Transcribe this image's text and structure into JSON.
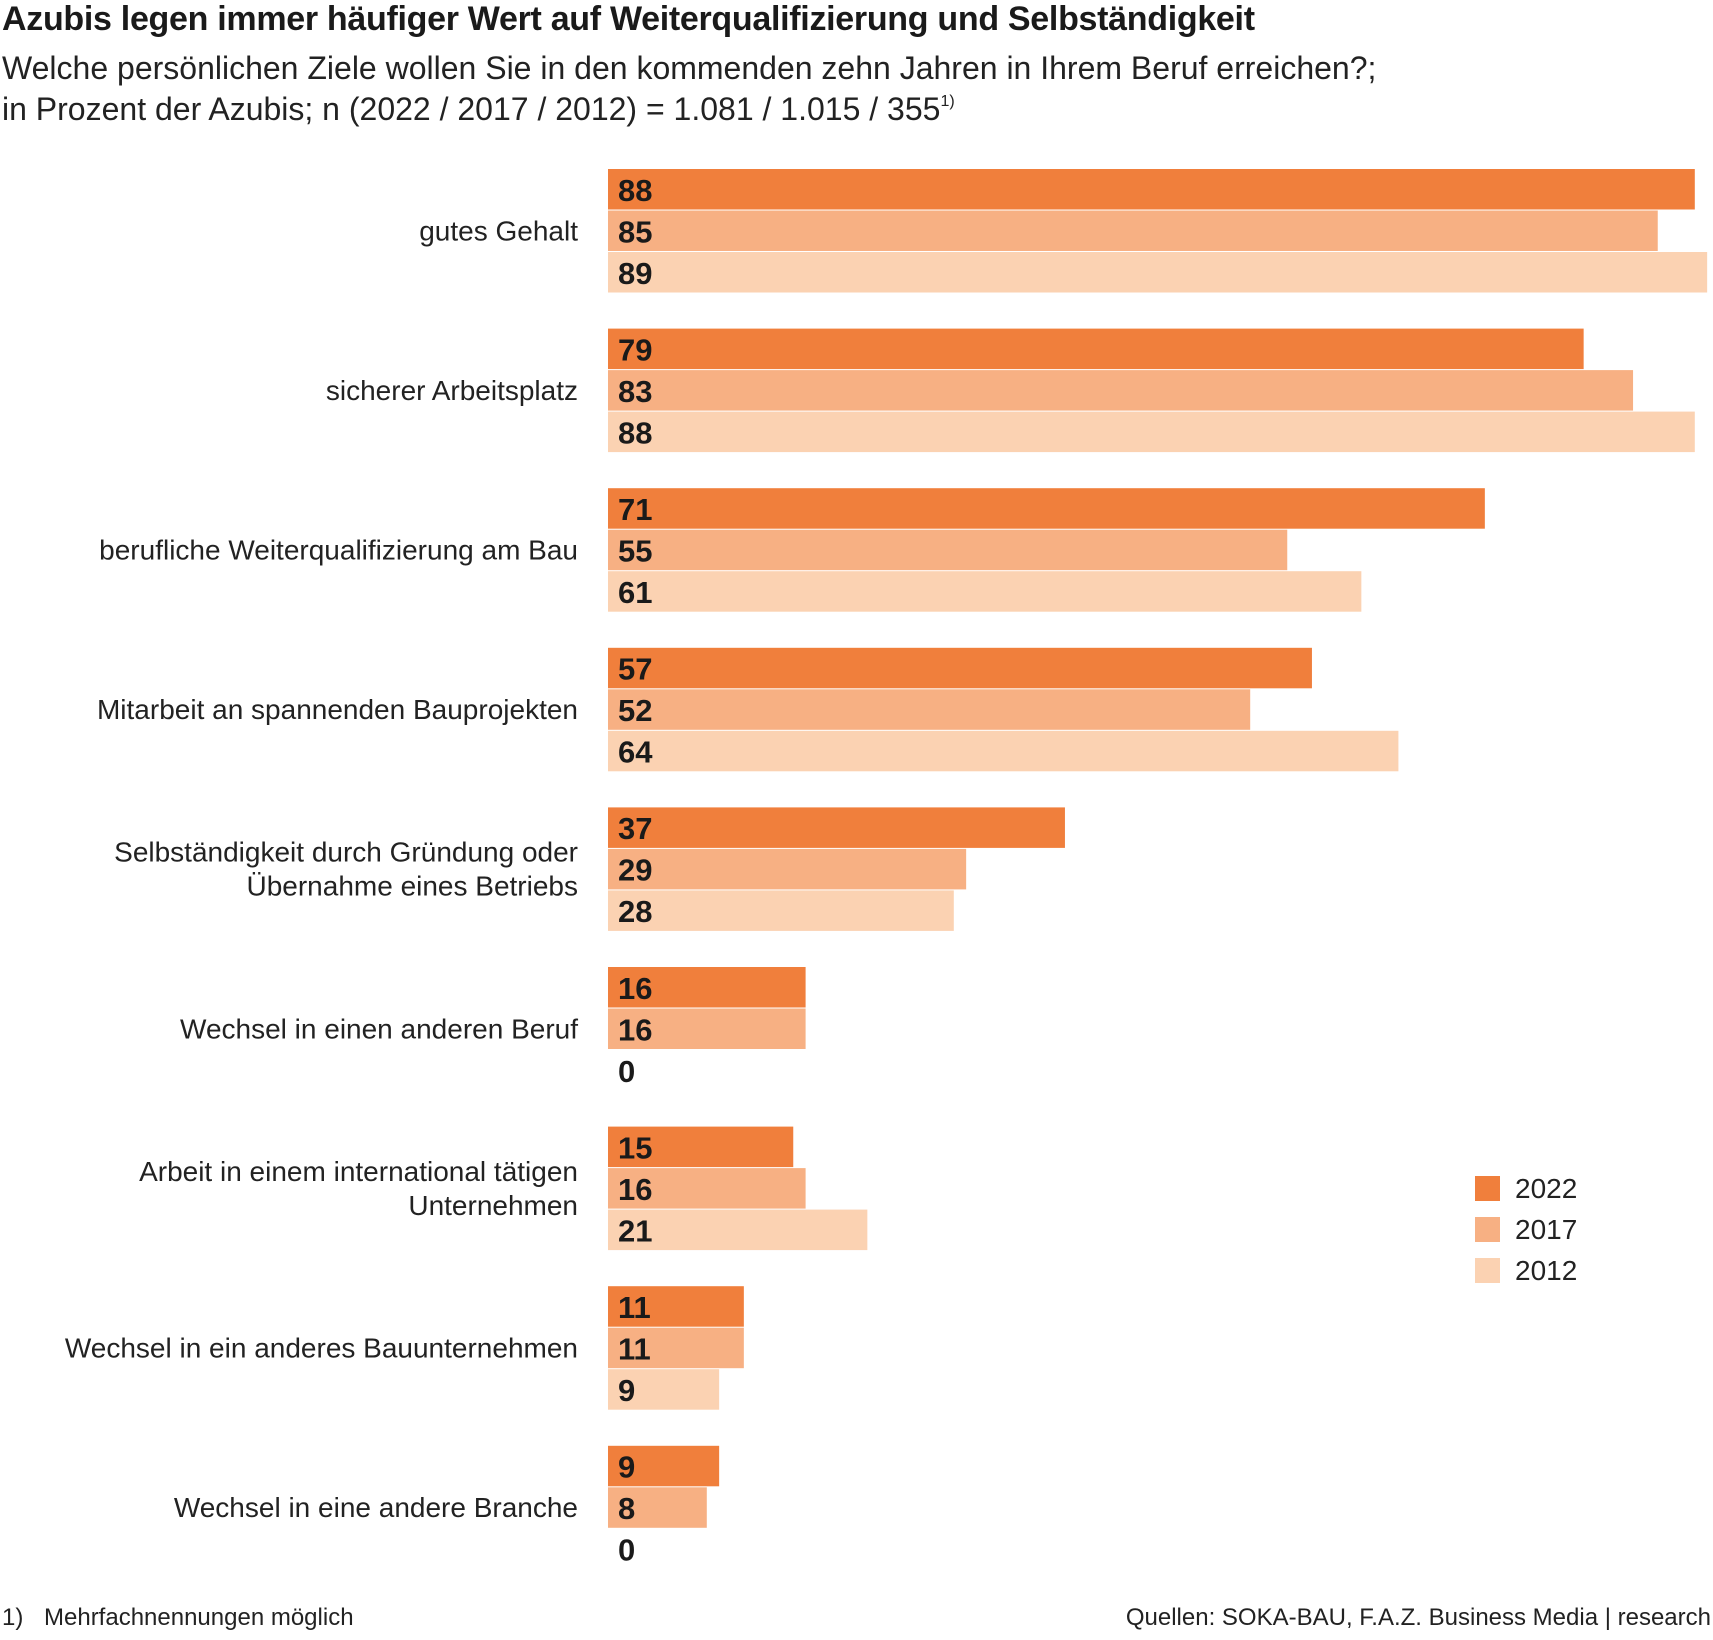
{
  "header": {
    "title": "Azubis legen immer häufiger Wert auf Weiterqualifizierung und Selbständigkeit",
    "subtitle_line1": "Welche persönlichen Ziele wollen Sie in den kommenden zehn Jahren in Ihrem Beruf erreichen?;",
    "subtitle_line2": "in Prozent der Azubis; n (2022 / 2017 / 2012) = 1.081 / 1.015 / 355",
    "subtitle_footnote_ref": "1)"
  },
  "footer": {
    "footnote_marker": "1)",
    "footnote_text": "Mehrfachnennungen möglich",
    "source": "Quellen: SOKA-BAU, F.A.Z. Business Media | research"
  },
  "legend": {
    "items": [
      {
        "label": "2022",
        "color": "#f07f3c"
      },
      {
        "label": "2017",
        "color": "#f7b083"
      },
      {
        "label": "2012",
        "color": "#fbd2b2"
      }
    ]
  },
  "chart_data": {
    "type": "bar",
    "orientation": "horizontal",
    "categories": [
      [
        "gutes Gehalt"
      ],
      [
        "sicherer Arbeitsplatz"
      ],
      [
        "berufliche Weiterqualifizierung am Bau"
      ],
      [
        "Mitarbeit an spannenden Bauprojekten"
      ],
      [
        "Selbständigkeit durch Gründung oder",
        "Übernahme eines Betriebs"
      ],
      [
        "Wechsel in einen anderen Beruf"
      ],
      [
        "Arbeit in einem international tätigen",
        "Unternehmen"
      ],
      [
        "Wechsel in ein anderes Bauunternehmen"
      ],
      [
        "Wechsel in eine andere Branche"
      ]
    ],
    "series": [
      {
        "name": "2022",
        "color": "#f07f3c",
        "values": [
          88,
          79,
          71,
          57,
          37,
          16,
          15,
          11,
          9
        ]
      },
      {
        "name": "2017",
        "color": "#f7b083",
        "values": [
          85,
          83,
          55,
          52,
          29,
          16,
          16,
          11,
          8
        ]
      },
      {
        "name": "2012",
        "color": "#fbd2b2",
        "values": [
          89,
          88,
          61,
          64,
          28,
          0,
          21,
          9,
          0
        ]
      }
    ],
    "xlim": [
      0,
      89
    ],
    "data_labels": true,
    "grid": false,
    "legend_position": "bottom-right"
  }
}
